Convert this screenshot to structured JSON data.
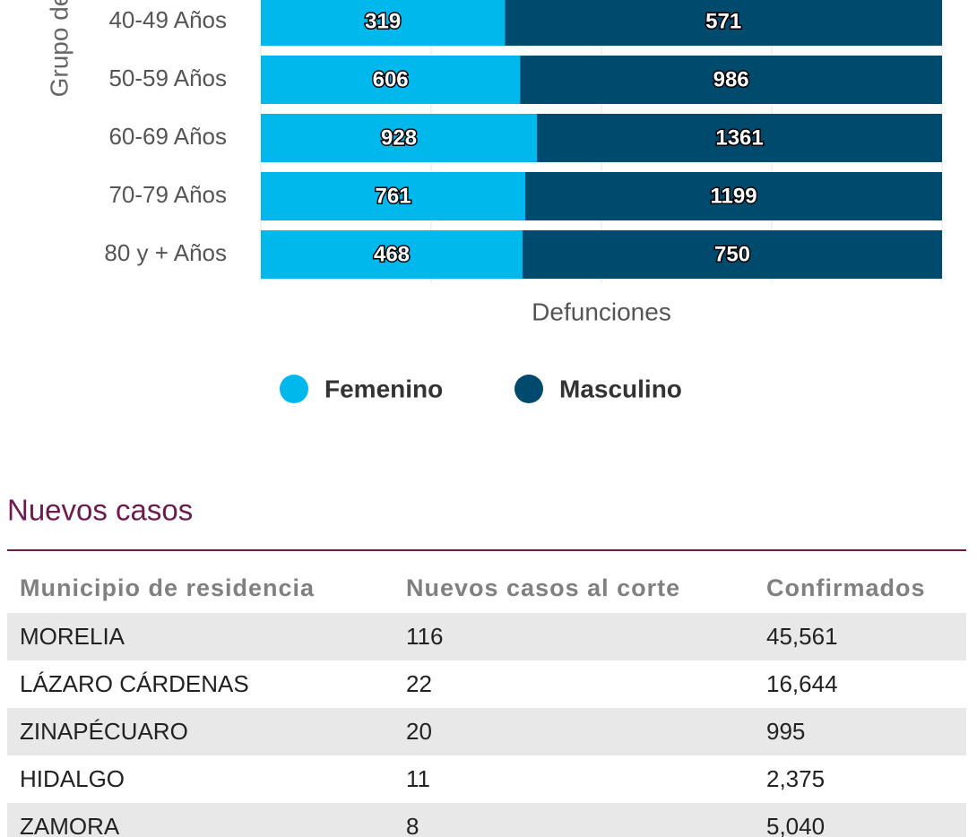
{
  "chart_data": {
    "type": "bar",
    "orientation": "horizontal",
    "stacked": "percent",
    "categories": [
      "40-49 Años",
      "50-59 Años",
      "60-69 Años",
      "70-79 Años",
      "80 y + Años"
    ],
    "series": [
      {
        "name": "Femenino",
        "color": "#00b8ec",
        "values": [
          319,
          606,
          928,
          761,
          468
        ]
      },
      {
        "name": "Masculino",
        "color": "#004a6e",
        "values": [
          571,
          986,
          1361,
          1199,
          750
        ]
      }
    ],
    "x_label": "Defunciones",
    "y_label": "Grupo de",
    "legend": "bottom"
  },
  "section": {
    "title": "Nuevos casos"
  },
  "table": {
    "header": [
      "Municipio de residencia",
      "Nuevos casos al corte",
      "Confirmados"
    ],
    "rows": [
      [
        "MORELIA",
        "116",
        "45,561"
      ],
      [
        "LÁZARO CÁRDENAS",
        "22",
        "16,644"
      ],
      [
        "ZINAPÉCUARO",
        "20",
        "995"
      ],
      [
        "HIDALGO",
        "11",
        "2,375"
      ],
      [
        "ZAMORA",
        "8",
        "5,040"
      ]
    ]
  }
}
